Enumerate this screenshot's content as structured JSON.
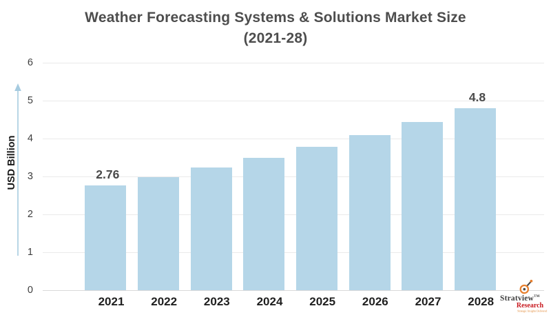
{
  "title": {
    "line1": "Weather Forecasting Systems & Solutions Market Size",
    "line2": "(2021-28)"
  },
  "chart_data": {
    "type": "bar",
    "categories": [
      "2021",
      "2022",
      "2023",
      "2024",
      "2025",
      "2026",
      "2027",
      "2028"
    ],
    "values": [
      2.76,
      2.99,
      3.24,
      3.5,
      3.79,
      4.1,
      4.43,
      4.8
    ],
    "data_labels": [
      "2.76",
      null,
      null,
      null,
      null,
      null,
      null,
      "4.8"
    ],
    "title": "Weather Forecasting Systems & Solutions Market Size (2021-28)",
    "xlabel": "",
    "ylabel": "USD Billion",
    "yticks": [
      0,
      1,
      2,
      3,
      4,
      5,
      6
    ],
    "ylim": [
      0,
      6
    ],
    "grid": true,
    "legend": false,
    "bar_color": "#b5d6e8",
    "arrow_color": "#a6cbe0"
  },
  "logo": {
    "brand": "Stratview",
    "trademark": "TM",
    "division": "Research",
    "tagline": "Strategic Insights Delivered"
  }
}
